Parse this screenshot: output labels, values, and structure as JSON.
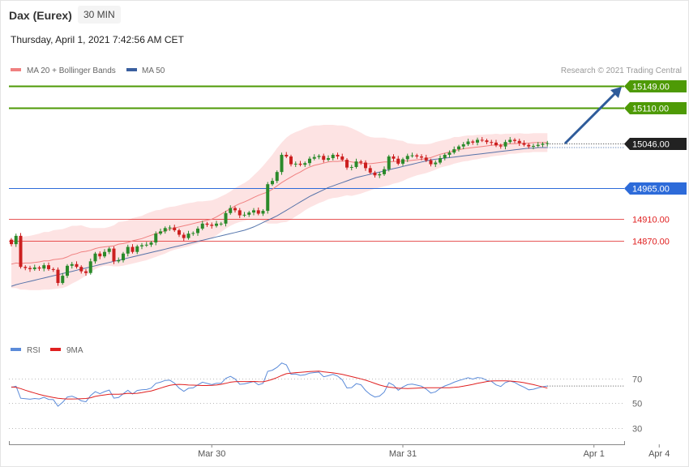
{
  "header": {
    "instrument": "Dax (Eurex)",
    "timeframe": "30 MIN",
    "datetime": "Thursday, April 1, 2021 7:42:56 AM CET"
  },
  "legend": {
    "ma20": "MA 20 + Bollinger Bands",
    "ma50": "MA 50",
    "copyright": "Research © 2021 Trading Central"
  },
  "rsi_legend": {
    "rsi": "RSI",
    "ma9": "9MA"
  },
  "colors": {
    "green_level": "#4e9a06",
    "blue_level": "#2d6bd9",
    "red_level": "#e02020",
    "ma20": "#f08080",
    "ma50": "#3a5f9f",
    "band": "#fde3e3",
    "arrow": "#2e5b9a",
    "candle_up": "#2a8a2a",
    "candle_down": "#cc1f1f",
    "rsi": "#5b8bd9",
    "rsi_ma": "#e02020"
  },
  "chart_data": {
    "type": "candlestick",
    "ylim": [
      14790,
      15190
    ],
    "levels": [
      {
        "label": "15149.00",
        "value": 15149,
        "kind": "resistance"
      },
      {
        "label": "15110.00",
        "value": 15110,
        "kind": "resistance"
      },
      {
        "label": "15046.00",
        "value": 15046,
        "kind": "last"
      },
      {
        "label": "14965.00",
        "value": 14965,
        "kind": "pivot"
      },
      {
        "label": "14910.00",
        "value": 14910,
        "kind": "support"
      },
      {
        "label": "14870.00",
        "value": 14870,
        "kind": "support"
      }
    ],
    "x_labels": [
      {
        "label": "Mar 30",
        "index": 43
      },
      {
        "label": "Mar 31",
        "index": 84
      },
      {
        "label": "Apr 1",
        "index": 125
      },
      {
        "label": "Apr 4",
        "index": 139
      }
    ],
    "closes": [
      14864,
      14879,
      14823,
      14821,
      14819,
      14822,
      14820,
      14826,
      14819,
      14818,
      14794,
      14807,
      14825,
      14828,
      14823,
      14815,
      14812,
      14833,
      14847,
      14842,
      14850,
      14856,
      14833,
      14835,
      14847,
      14859,
      14850,
      14860,
      14862,
      14863,
      14867,
      14883,
      14887,
      14893,
      14894,
      14889,
      14881,
      14875,
      14883,
      14884,
      14892,
      14901,
      14899,
      14897,
      14901,
      14901,
      14920,
      14929,
      14925,
      14916,
      14917,
      14921,
      14925,
      14919,
      14924,
      14972,
      14978,
      14994,
      15025,
      15022,
      15008,
      15009,
      15007,
      15010,
      15018,
      15021,
      15023,
      15016,
      15019,
      15025,
      15022,
      15016,
      15002,
      15003,
      15013,
      15011,
      15001,
      14993,
      14988,
      14990,
      14999,
      15022,
      15018,
      15009,
      15017,
      15023,
      15024,
      15022,
      15020,
      15015,
      15008,
      15011,
      15019,
      15025,
      15029,
      15035,
      15040,
      15044,
      15049,
      15047,
      15052,
      15051,
      15048,
      15047,
      15042,
      15040,
      15048,
      15052,
      15050,
      15046,
      15043,
      15040,
      15041,
      15043,
      15045,
      15046
    ],
    "ma20": [
      14828,
      14830,
      14829,
      14830,
      14830,
      14831,
      14832,
      14834,
      14834,
      14836,
      14837,
      14838,
      14841,
      14845,
      14847,
      14850,
      14851,
      14853,
      14856,
      14858,
      14859,
      14860,
      14861,
      14864,
      14865,
      14867,
      14870,
      14872,
      14874,
      14877,
      14880,
      14883,
      14885,
      14888,
      14891,
      14893,
      14895,
      14897,
      14899,
      14901,
      14903,
      14905,
      14907,
      14909,
      14913,
      14918,
      14923,
      14928,
      14933,
      14937,
      14940,
      14944,
      14948,
      14952,
      14955,
      14958,
      14963,
      14969,
      14975,
      14980,
      14985,
      14990,
      14994,
      14999,
      15003,
      15006,
      15008,
      15010,
      15012,
      15013,
      15013,
      15014,
      15014,
      15012,
      15011,
      15010,
      15009,
      15009,
      15010,
      15011,
      15012,
      15012,
      15013,
      15013,
      15014,
      15014,
      15015,
      15016,
      15017,
      15018,
      15020,
      15023,
      15026,
      15028,
      15030,
      15033,
      15034,
      15036,
      15037,
      15038,
      15039,
      15040,
      15041,
      15042,
      15043,
      15043,
      15044,
      15045,
      15045,
      15046,
      15046,
      15046,
      15047,
      15047,
      15047,
      15047
    ],
    "ma50": [
      14788,
      14791,
      14793,
      14795,
      14797,
      14799,
      14801,
      14803,
      14805,
      14807,
      14809,
      14811,
      14813,
      14815,
      14817,
      14819,
      14821,
      14823,
      14825,
      14827,
      14829,
      14831,
      14833,
      14835,
      14837,
      14839,
      14841,
      14843,
      14845,
      14847,
      14849,
      14851,
      14853,
      14855,
      14857,
      14859,
      14861,
      14863,
      14865,
      14867,
      14869,
      14871,
      14873,
      14875,
      14877,
      14879,
      14881,
      14883,
      14885,
      14887,
      14889,
      14892,
      14895,
      14899,
      14903,
      14907,
      14911,
      14915,
      14920,
      14925,
      14930,
      14935,
      14940,
      14945,
      14950,
      14954,
      14958,
      14962,
      14966,
      14969,
      14972,
      14975,
      14978,
      14981,
      14984,
      14986,
      14988,
      14990,
      14992,
      14994,
      14996,
      14998,
      15000,
      15002,
      15004,
      15006,
      15008,
      15010,
      15012,
      15014,
      15016,
      15017,
      15018,
      15019,
      15020,
      15021,
      15022,
      15023,
      15024,
      15025,
      15026,
      15027,
      15028,
      15029,
      15030,
      15031,
      15032,
      15033,
      15034,
      15035,
      15036,
      15037,
      15037,
      15038,
      15038,
      15038
    ],
    "band_width": [
      43,
      45,
      47,
      48,
      49,
      50,
      51,
      52,
      52,
      53,
      53,
      53,
      53,
      52,
      50,
      48,
      44,
      40,
      37,
      35,
      34,
      35,
      37,
      40,
      40,
      40,
      41,
      41,
      41,
      42,
      42,
      42,
      41,
      41,
      40,
      39,
      39,
      39,
      39,
      38,
      38,
      36,
      35,
      34,
      33,
      32,
      31,
      31,
      32,
      33,
      34,
      36,
      40,
      44,
      50,
      57,
      62,
      68,
      72,
      76,
      77,
      76,
      75,
      74,
      73,
      72,
      70,
      69,
      67,
      66,
      65,
      64,
      62,
      61,
      58,
      55,
      51,
      48,
      46,
      45,
      44,
      42,
      40,
      38,
      36,
      32,
      30,
      28,
      27,
      26,
      25,
      25,
      24,
      24,
      24,
      24,
      23,
      23,
      23,
      22,
      22,
      21,
      21,
      20,
      20,
      19,
      19,
      18,
      18,
      18,
      17,
      17,
      17,
      17,
      17,
      17
    ],
    "rsi": [
      62.5,
      63.6,
      53.8,
      53.4,
      53.0,
      53.6,
      53.2,
      54.6,
      52.9,
      52.7,
      47.4,
      50.6,
      54.8,
      55.5,
      54.0,
      51.7,
      50.9,
      56.0,
      59.1,
      57.5,
      59.2,
      60.4,
      53.9,
      54.4,
      57.4,
      60.2,
      57.2,
      60.1,
      60.6,
      60.9,
      62.0,
      65.9,
      66.8,
      68.2,
      68.4,
      66.0,
      62.0,
      59.4,
      61.9,
      62.2,
      64.6,
      66.8,
      65.8,
      64.9,
      65.9,
      65.9,
      69.9,
      71.5,
      69.4,
      65.1,
      65.4,
      66.4,
      67.4,
      64.7,
      65.9,
      75.6,
      76.5,
      78.8,
      82.3,
      80.8,
      73.2,
      73.4,
      72.3,
      72.8,
      74.1,
      74.6,
      74.9,
      71.2,
      72.0,
      73.2,
      71.7,
      68.6,
      62.1,
      62.4,
      65.6,
      64.7,
      60.1,
      56.8,
      54.8,
      55.6,
      58.8,
      66.4,
      64.4,
      60.3,
      62.9,
      64.8,
      65.2,
      64.4,
      63.5,
      61.2,
      58.0,
      59.0,
      61.8,
      63.8,
      65.1,
      66.8,
      68.1,
      69.2,
      70.4,
      69.3,
      70.6,
      70.1,
      68.2,
      67.5,
      64.6,
      63.3,
      66.5,
      67.7,
      66.6,
      64.4,
      62.7,
      60.6,
      61.1,
      62.2,
      63.1,
      63.7
    ],
    "rsi_ma": [
      63.0,
      62.6,
      61.6,
      60.3,
      59.1,
      58.0,
      56.9,
      56.0,
      55.2,
      54.4,
      53.8,
      53.4,
      53.2,
      53.2,
      53.3,
      53.5,
      53.6,
      54.2,
      55.3,
      56.0,
      56.5,
      57.1,
      57.0,
      57.0,
      57.3,
      57.8,
      57.6,
      57.8,
      58.4,
      59.1,
      59.7,
      60.8,
      62.0,
      63.2,
      64.2,
      64.8,
      65.0,
      64.8,
      64.5,
      64.4,
      64.2,
      64.1,
      64.1,
      64.2,
      64.5,
      65.1,
      65.9,
      66.8,
      67.2,
      67.3,
      67.3,
      67.3,
      67.4,
      67.2,
      67.1,
      68.0,
      69.1,
      70.5,
      72.2,
      73.7,
      74.1,
      74.5,
      74.8,
      75.1,
      75.4,
      75.6,
      75.8,
      75.2,
      74.7,
      74.3,
      73.8,
      73.1,
      72.2,
      71.3,
      70.4,
      69.5,
      68.4,
      67.2,
      65.8,
      64.5,
      63.5,
      62.8,
      62.4,
      62.0,
      61.8,
      61.7,
      61.8,
      62.0,
      62.2,
      62.3,
      62.3,
      62.3,
      62.3,
      62.3,
      62.3,
      62.6,
      63.0,
      63.6,
      64.3,
      65.0,
      65.9,
      66.6,
      67.3,
      67.8,
      67.9,
      67.9,
      67.9,
      67.7,
      67.4,
      67.0,
      66.4,
      65.6,
      64.8,
      63.9,
      63.0,
      62.0
    ]
  }
}
